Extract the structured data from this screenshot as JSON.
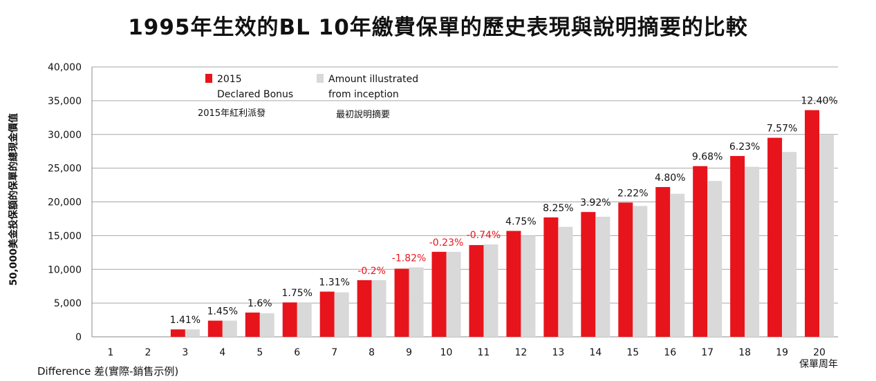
{
  "title": "1995年生效的BL 10年繳費保單的歷史表現與說明摘要的比較",
  "chart_data": {
    "type": "bar",
    "title": "1995年生效的BL 10年繳費保單的歷史表現與說明摘要的比較",
    "ylabel": "50,000美金投保額的保單的總現金價值",
    "xlabel": "保單周年",
    "ylim": [
      0,
      40000
    ],
    "yticks": [
      "0",
      "5,000",
      "10,000",
      "15,000",
      "20,000",
      "25,000",
      "30,000",
      "35,000",
      "40,000"
    ],
    "categories": [
      "1",
      "2",
      "3",
      "4",
      "5",
      "6",
      "7",
      "8",
      "9",
      "10",
      "11",
      "12",
      "13",
      "14",
      "15",
      "16",
      "17",
      "18",
      "19",
      "20"
    ],
    "series": [
      {
        "name": "2015 Declared Bonus",
        "name_zh": "2015年紅利派發",
        "color": "#e8141c",
        "values": [
          0,
          0,
          1100,
          2400,
          3600,
          5100,
          6700,
          8400,
          10100,
          12600,
          13600,
          15700,
          17700,
          18500,
          19900,
          22200,
          25300,
          26800,
          29500,
          33600
        ]
      },
      {
        "name": "Amount illustrated from inception",
        "name_zh": "最初說明摘要",
        "color": "#d9d9d9",
        "values": [
          0,
          0,
          1100,
          2400,
          3500,
          5000,
          6600,
          8400,
          10300,
          12600,
          13700,
          15000,
          16300,
          17800,
          19400,
          21200,
          23100,
          25200,
          27400,
          29900
        ]
      }
    ],
    "difference_label": "Difference 差(實際-銷售示例)",
    "differences": [
      "",
      "",
      "1.41%",
      "1.45%",
      "1.6%",
      "1.75%",
      "1.31%",
      "-0.2%",
      "-1.82%",
      "-0.23%",
      "-0.74%",
      "4.75%",
      "8.25%",
      "3.92%",
      "2.22%",
      "4.80%",
      "9.68%",
      "6.23%",
      "7.57%",
      "12.40%"
    ],
    "legend": [
      {
        "line1": "2015",
        "line2": "Declared Bonus",
        "zh": "2015年紅利派發"
      },
      {
        "line1": "Amount illustrated",
        "line2": "from inception",
        "zh": "最初說明摘要"
      }
    ],
    "negative_color": "#e8141c",
    "positive_color": "#111111"
  }
}
